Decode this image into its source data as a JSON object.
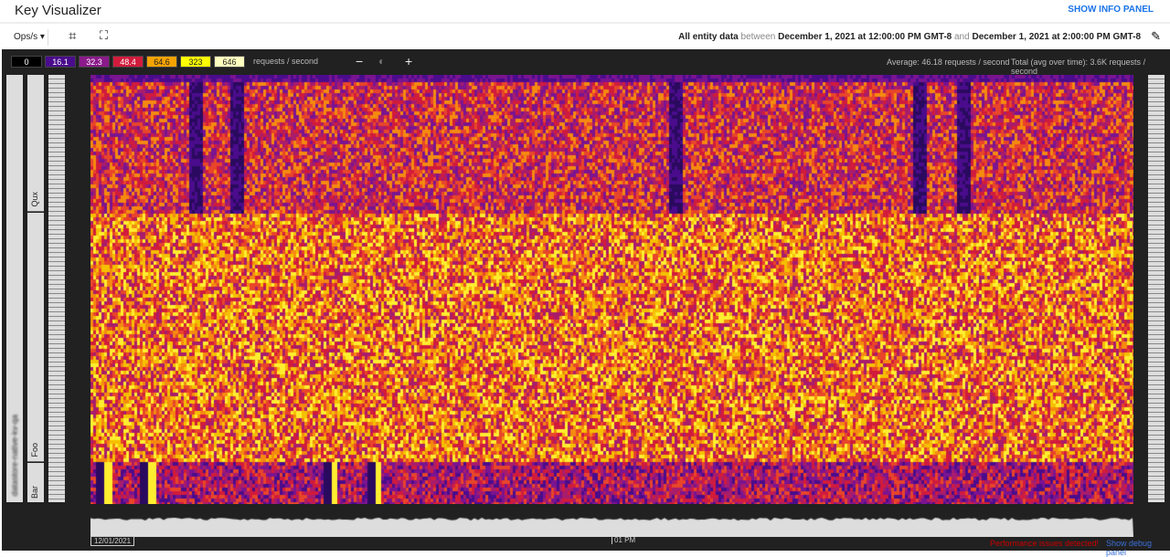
{
  "header": {
    "title": "Key Visualizer",
    "show_info_panel": "SHOW INFO PANEL"
  },
  "toolbar": {
    "metric": "Ops/s",
    "crop_icon": "crop-icon",
    "fullscreen_icon": "fullscreen-icon",
    "range": {
      "prefix": "All entity data",
      "between": "between",
      "start": "December 1, 2021 at 12:00:00 PM GMT-8",
      "and": "and",
      "end": "December 1, 2021 at 2:00:00 PM GMT-8"
    },
    "edit_icon": "pencil-icon"
  },
  "legend": {
    "items": [
      {
        "label": "0",
        "bg": "#000000",
        "fg": "#ffffff"
      },
      {
        "label": "16.1",
        "bg": "#4a0c8c",
        "fg": "#ffffff"
      },
      {
        "label": "32.3",
        "bg": "#8b1a8a",
        "fg": "#ffffff"
      },
      {
        "label": "48.4",
        "bg": "#d11b3c",
        "fg": "#ffffff"
      },
      {
        "label": "64.6",
        "bg": "#f5a300",
        "fg": "#222222"
      },
      {
        "label": "323",
        "bg": "#ffff00",
        "fg": "#222222"
      },
      {
        "label": "646",
        "bg": "#ffffc0",
        "fg": "#222222"
      }
    ],
    "unit": "requests / second"
  },
  "zoom": {
    "minus": "−",
    "plus": "+",
    "brightness_icon": "brightness-icon"
  },
  "stats": {
    "average": "Average: 46.18 requests / second",
    "total": "Total (avg over time): 3.6K requests / second"
  },
  "keys": {
    "database": "datastore-native-kv-qa",
    "groups": [
      "Qux",
      "Foo",
      "Bar"
    ]
  },
  "timeline": {
    "labels": [
      "12/01/2021",
      "01 PM"
    ]
  },
  "footer": {
    "performance": "Performance issues detected!",
    "debug": "Show debug panel"
  }
}
